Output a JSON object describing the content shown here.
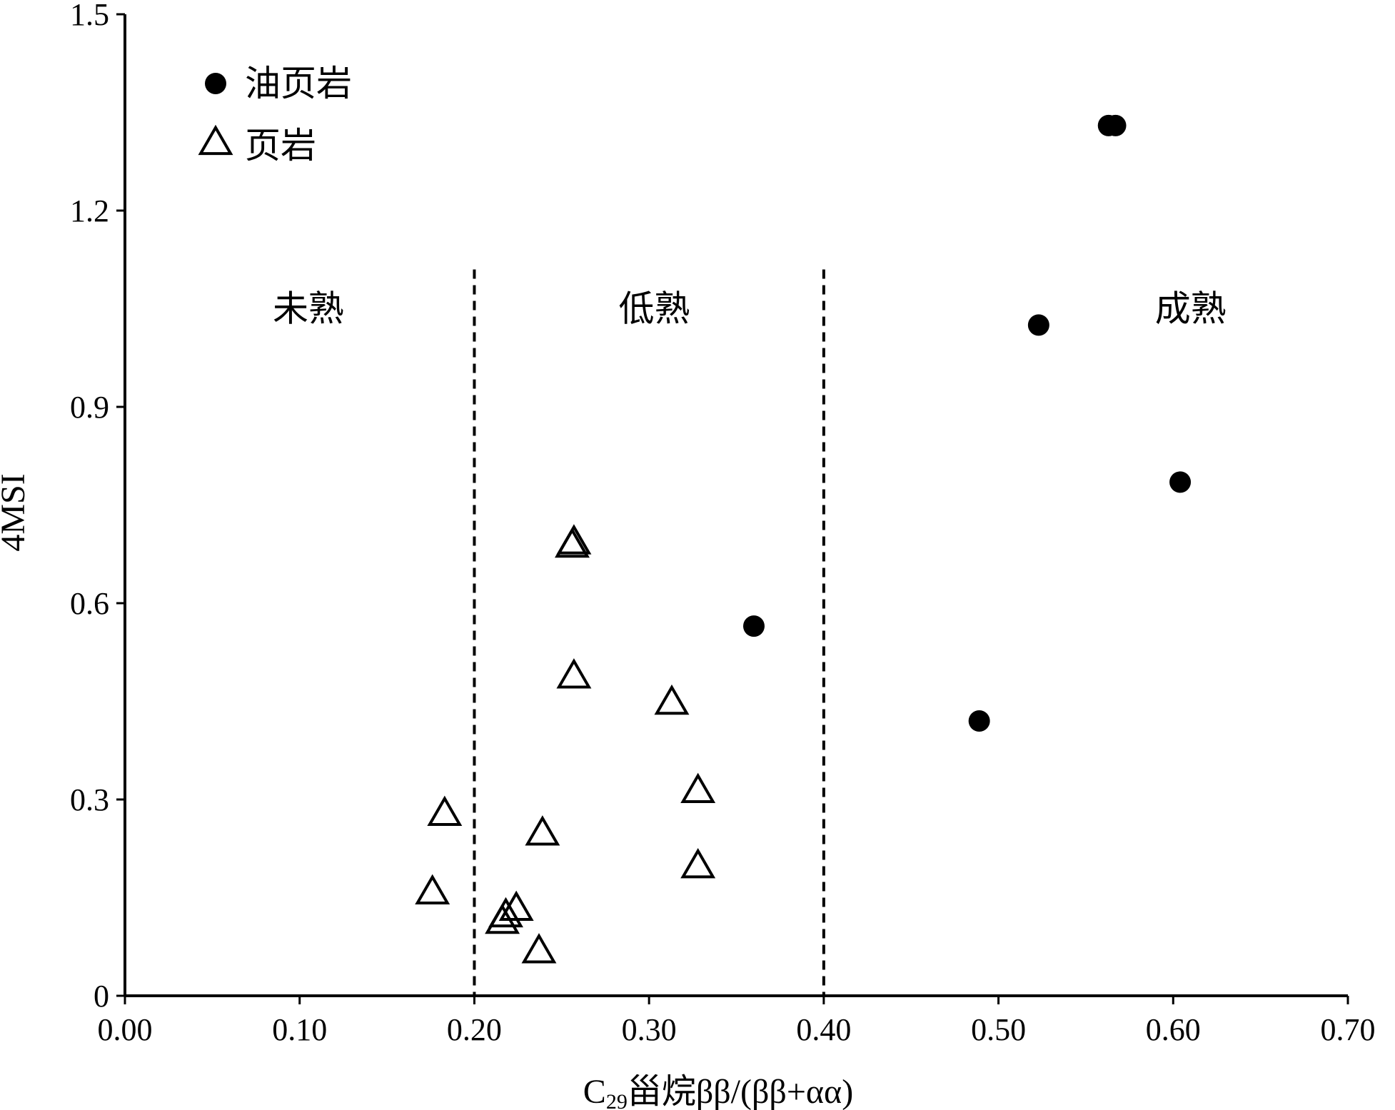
{
  "chart_data": {
    "type": "scatter",
    "title": "",
    "xlabel_main": "C",
    "xlabel_sub": "29",
    "xlabel_rest": "甾烷ββ/(ββ+αα)",
    "ylabel": "4MSI",
    "xlim": [
      0,
      0.7
    ],
    "ylim": [
      0,
      1.5
    ],
    "x_ticks": [
      0,
      0.1,
      0.2,
      0.3,
      0.4,
      0.5,
      0.6,
      0.7
    ],
    "x_tick_labels": [
      "0.00",
      "0.10",
      "0.20",
      "0.30",
      "0.40",
      "0.50",
      "0.60",
      "0.70"
    ],
    "y_ticks": [
      0,
      0.3,
      0.6,
      0.9,
      1.2,
      1.5
    ],
    "y_tick_labels": [
      "0",
      "0.3",
      "0.6",
      "0.9",
      "1.2",
      "1.5"
    ],
    "grid": false,
    "legend_position": "top-left",
    "thresholds": [
      0.2,
      0.4
    ],
    "zones": [
      {
        "label": "未熟",
        "x": 0.105,
        "y": 1.05
      },
      {
        "label": "低熟",
        "x": 0.303,
        "y": 1.05
      },
      {
        "label": "成熟",
        "x": 0.61,
        "y": 1.05
      }
    ],
    "series": [
      {
        "name": "油页岩",
        "marker": "filled-circle",
        "points": [
          [
            0.563,
            1.33
          ],
          [
            0.567,
            1.33
          ],
          [
            0.523,
            1.025
          ],
          [
            0.604,
            0.785
          ],
          [
            0.36,
            0.565
          ],
          [
            0.489,
            0.42
          ]
        ]
      },
      {
        "name": "页岩",
        "marker": "open-triangle",
        "points": [
          [
            0.256,
            0.685
          ],
          [
            0.257,
            0.69
          ],
          [
            0.257,
            0.485
          ],
          [
            0.313,
            0.445
          ],
          [
            0.328,
            0.31
          ],
          [
            0.328,
            0.195
          ],
          [
            0.183,
            0.275
          ],
          [
            0.239,
            0.245
          ],
          [
            0.176,
            0.155
          ],
          [
            0.224,
            0.13
          ],
          [
            0.218,
            0.12
          ],
          [
            0.216,
            0.11
          ],
          [
            0.237,
            0.065
          ]
        ]
      }
    ]
  }
}
